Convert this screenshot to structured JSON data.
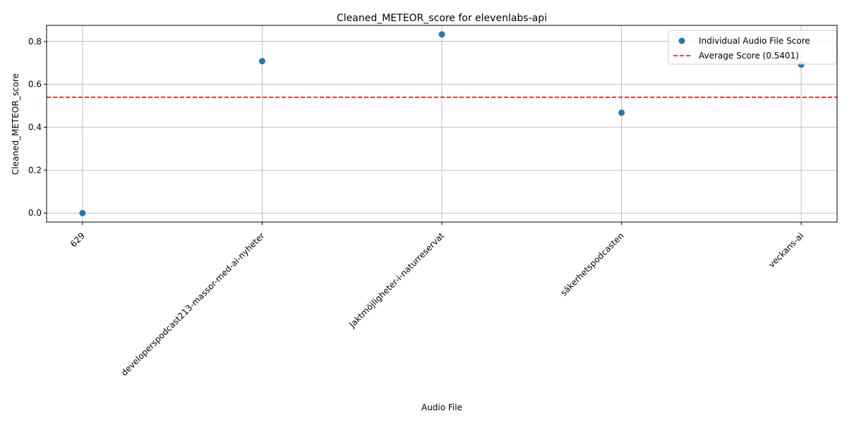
{
  "chart_data": {
    "type": "scatter",
    "title": "Cleaned_METEOR_score for elevenlabs-api",
    "xlabel": "Audio File",
    "ylabel": "Cleaned_METEOR_score",
    "categories": [
      "629",
      "developerspodcast213-massor-med-ai-nyheter",
      "Jaktmöjligheter-i-naturreservat",
      "säkerhetspodcasten",
      "veckans-ai"
    ],
    "series": [
      {
        "name": "Individual Audio File Score",
        "values": [
          0.0,
          0.708,
          0.833,
          0.468,
          0.692
        ],
        "color": "#1f77b4"
      }
    ],
    "average": {
      "name": "Average Score (0.5401)",
      "value": 0.5401,
      "color": "#ff0000",
      "style": "dashed"
    },
    "yticks": [
      0.0,
      0.2,
      0.4,
      0.6,
      0.8
    ],
    "ytick_labels": [
      "0.0",
      "0.2",
      "0.4",
      "0.6",
      "0.8"
    ],
    "ylim": [
      -0.042,
      0.875
    ],
    "grid": true,
    "legend_position": "top-right"
  }
}
